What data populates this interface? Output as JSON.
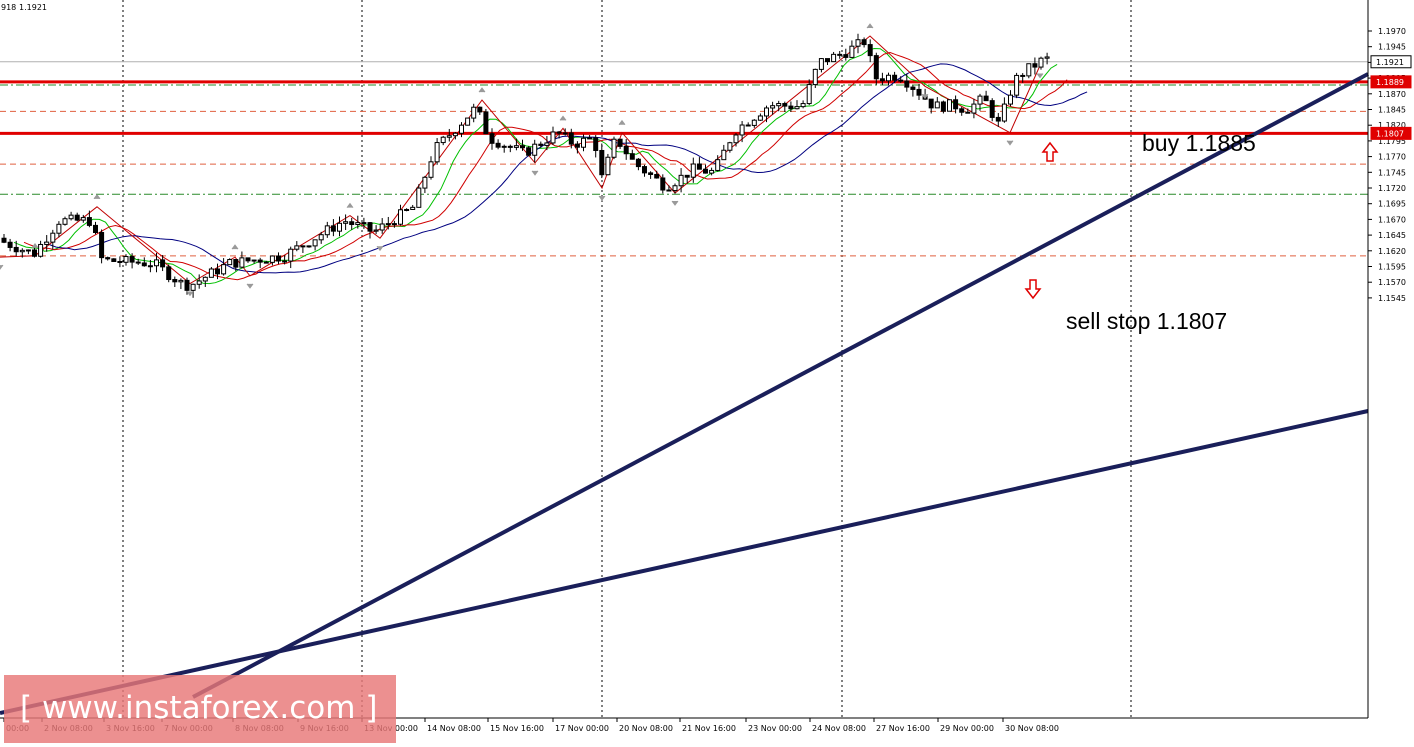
{
  "header": {
    "symbol_fragment": "918",
    "last_price": "1.1921"
  },
  "chart_data": {
    "type": "candlestick",
    "y_axis": {
      "range": [
        1.1535,
        1.1985
      ],
      "tick_labels": [
        "1.1970",
        "1.1945",
        "1.1920",
        "1.1895",
        "1.1870",
        "1.1845",
        "1.1820",
        "1.1795",
        "1.1770",
        "1.1745",
        "1.1720",
        "1.1695",
        "1.1670",
        "1.1645",
        "1.1620",
        "1.1595",
        "1.1570",
        "1.1545"
      ],
      "current_price_tag": "1.1921",
      "line_tags": [
        "1.1889",
        "1.1807"
      ]
    },
    "x_axis": {
      "tick_labels": [
        "00:00",
        "2 Nov 08:00",
        "3 Nov 16:00",
        "7 Nov 00:00",
        "8 Nov 08:00",
        "9 Nov 16:00",
        "13 Nov 00:00",
        "14 Nov 08:00",
        "15 Nov 16:00",
        "17 Nov 00:00",
        "20 Nov 08:00",
        "21 Nov 16:00",
        "23 Nov 00:00",
        "24 Nov 08:00",
        "27 Nov 16:00",
        "29 Nov 00:00",
        "30 Nov 08:00"
      ]
    },
    "horizontal_levels": [
      {
        "price": 1.1889,
        "color": "#e00000",
        "style": "solid"
      },
      {
        "price": 1.1807,
        "color": "#e00000",
        "style": "solid"
      },
      {
        "price": 1.1884,
        "color": "#2a8a2a",
        "style": "dashdot"
      },
      {
        "price": 1.1842,
        "color": "#e06040",
        "style": "dashed"
      },
      {
        "price": 1.1758,
        "color": "#e06040",
        "style": "dashed"
      },
      {
        "price": 1.171,
        "color": "#2a8a2a",
        "style": "dashdot"
      },
      {
        "price": 1.1612,
        "color": "#e06040",
        "style": "dashed"
      }
    ],
    "annotations": [
      {
        "text": "buy 1.1885"
      },
      {
        "text": "sell stop 1.1807"
      }
    ],
    "colors": {
      "up_candle": "#ffffff",
      "down_candle": "#000000",
      "wick": "#000000",
      "trendline": "#1a1f5a",
      "zigzag": "#c00000",
      "ma_fast": "#00c000",
      "ma_mid": "#d00000",
      "ma_slow": "#000080",
      "level": "#e00000",
      "tag_bg": "#e00000"
    },
    "watermark": "[ www.instaforex.com ]"
  }
}
